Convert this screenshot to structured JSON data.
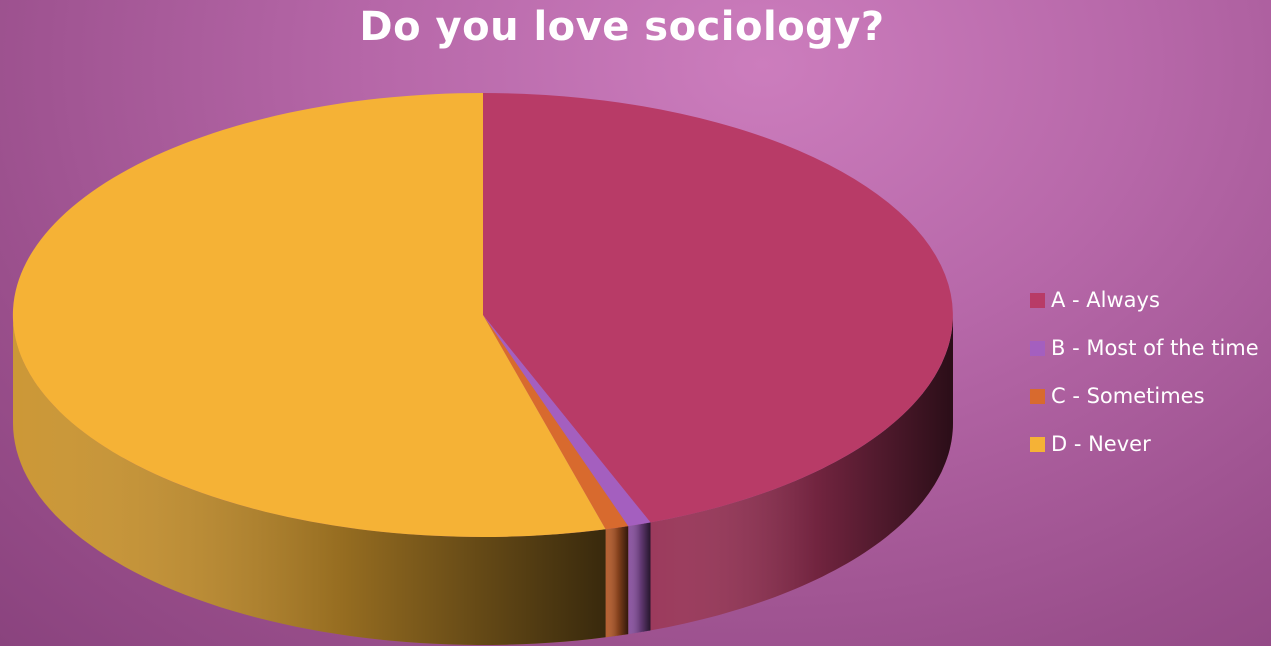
{
  "chart_data": {
    "type": "pie",
    "title": "Do you love sociology?",
    "categories": [
      "A - Always",
      "B - Most of the time",
      "C - Sometimes",
      "D - Never"
    ],
    "values": [
      44.2,
      0.8,
      0.8,
      54.2
    ],
    "colors": [
      "#b83b67",
      "#a45fbf",
      "#d86a2e",
      "#f5b236"
    ],
    "style": "3d-pie",
    "legend": {
      "position": "right"
    }
  }
}
